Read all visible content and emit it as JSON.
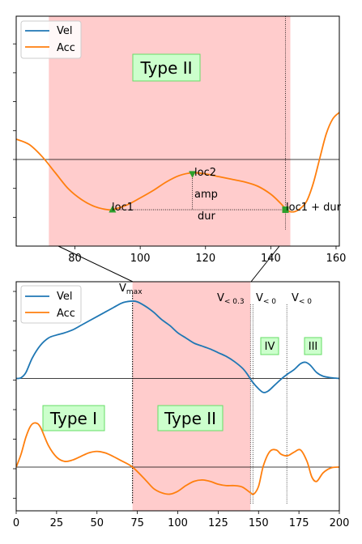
{
  "chart_data": [
    {
      "type": "line",
      "panel": "top",
      "xlim": [
        62,
        161
      ],
      "xticks": [
        80,
        100,
        120,
        140,
        160
      ],
      "grid": false,
      "legend": "top-left",
      "series": [
        {
          "name": "Vel",
          "color": "#1f77b4",
          "values": []
        },
        {
          "name": "Acc",
          "color": "#ff7f0e",
          "x": [
            62,
            66,
            70,
            74,
            78,
            82,
            86,
            90,
            92,
            96,
            100,
            104,
            108,
            112,
            116,
            120,
            124,
            128,
            132,
            136,
            140,
            143,
            145,
            147,
            149,
            151,
            153,
            155,
            157,
            159,
            161
          ],
          "y": [
            0.38,
            0.28,
            0.05,
            -0.25,
            -0.55,
            -0.75,
            -0.88,
            -0.94,
            -0.93,
            -0.85,
            -0.72,
            -0.58,
            -0.42,
            -0.3,
            -0.25,
            -0.27,
            -0.32,
            -0.37,
            -0.42,
            -0.5,
            -0.65,
            -0.82,
            -0.95,
            -0.98,
            -0.92,
            -0.78,
            -0.45,
            0.02,
            0.48,
            0.76,
            0.88
          ]
        }
      ],
      "shaded_region": {
        "x": [
          72,
          146
        ],
        "color": "#ffcccc"
      },
      "vline_x": 144.5,
      "annotations": {
        "region_label": "Type II",
        "loc1": "loc1",
        "loc2": "loc2",
        "amp": "amp",
        "dur": "dur",
        "loc1_plus_dur": "loc1 + dur"
      },
      "markers": {
        "loc1": [
          91.5,
          -0.94
        ],
        "loc2": [
          116,
          -0.27
        ],
        "end": [
          144.5,
          -0.94
        ]
      }
    },
    {
      "type": "line",
      "panel": "bottom",
      "xlim": [
        0,
        200
      ],
      "xticks": [
        0,
        25,
        50,
        75,
        100,
        125,
        150,
        175,
        200
      ],
      "grid": false,
      "legend": "top-left",
      "series": [
        {
          "name": "Vel",
          "color": "#1f77b4",
          "x": [
            0,
            3,
            6,
            10,
            15,
            20,
            25,
            30,
            35,
            40,
            45,
            50,
            55,
            60,
            65,
            68,
            72,
            75,
            80,
            85,
            90,
            95,
            100,
            105,
            110,
            115,
            120,
            125,
            130,
            135,
            140,
            143,
            146,
            150,
            153,
            156,
            160,
            165,
            168,
            172,
            176,
            179,
            182,
            186,
            190,
            195,
            200
          ],
          "y": [
            0.0,
            0.01,
            0.08,
            0.28,
            0.45,
            0.55,
            0.59,
            0.62,
            0.66,
            0.72,
            0.78,
            0.84,
            0.9,
            0.96,
            1.02,
            1.04,
            1.05,
            1.04,
            0.98,
            0.9,
            0.8,
            0.72,
            0.62,
            0.55,
            0.48,
            0.44,
            0.4,
            0.35,
            0.3,
            0.23,
            0.14,
            0.06,
            -0.04,
            -0.14,
            -0.19,
            -0.17,
            -0.09,
            0.01,
            0.06,
            0.12,
            0.2,
            0.22,
            0.18,
            0.08,
            0.03,
            0.01,
            0.0
          ]
        },
        {
          "name": "Acc",
          "color": "#ff7f0e",
          "x": [
            0,
            3,
            6,
            9,
            12,
            15,
            20,
            25,
            30,
            35,
            40,
            45,
            50,
            55,
            60,
            65,
            72,
            80,
            85,
            90,
            95,
            100,
            105,
            110,
            115,
            120,
            125,
            130,
            135,
            140,
            145,
            147,
            150,
            153,
            157,
            161,
            164,
            168,
            172,
            176,
            180,
            183,
            186,
            190,
            195,
            200
          ],
          "y": [
            0.0,
            0.18,
            0.42,
            0.58,
            0.62,
            0.56,
            0.3,
            0.14,
            0.08,
            0.1,
            0.15,
            0.2,
            0.22,
            0.2,
            0.15,
            0.09,
            0.0,
            -0.18,
            -0.3,
            -0.36,
            -0.38,
            -0.34,
            -0.26,
            -0.2,
            -0.18,
            -0.2,
            -0.24,
            -0.26,
            -0.26,
            -0.28,
            -0.36,
            -0.38,
            -0.27,
            0.02,
            0.22,
            0.24,
            0.18,
            0.16,
            0.21,
            0.24,
            0.08,
            -0.14,
            -0.2,
            -0.08,
            -0.01,
            0.0
          ]
        }
      ],
      "shaded_region": {
        "x": [
          72,
          145
        ],
        "color": "#ffcccc"
      },
      "vlines": [
        72,
        145,
        146.5,
        167.5
      ],
      "annotations": {
        "vmax": "V",
        "vmax_sub": "max",
        "v03": "V",
        "v03_sub": "< 0.3",
        "v0a": "V",
        "v0a_sub": "< 0",
        "v0b": "V",
        "v0b_sub": "< 0",
        "type1": "Type I",
        "type2": "Type II",
        "iv": "IV",
        "iii": "III"
      }
    }
  ]
}
